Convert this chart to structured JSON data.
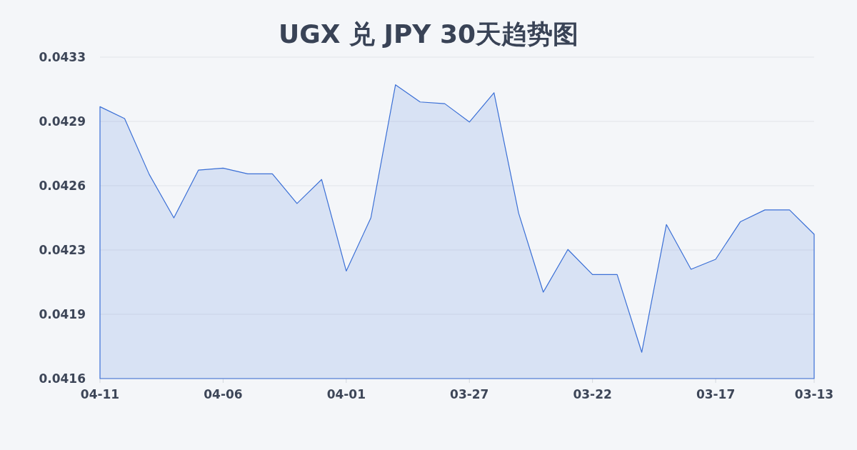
{
  "chart_data": {
    "type": "area",
    "title": "UGX 兑 JPY 30天趋势图",
    "categories": [
      "04-11",
      null,
      null,
      null,
      null,
      "04-06",
      null,
      null,
      null,
      null,
      "04-01",
      null,
      null,
      null,
      null,
      "03-27",
      null,
      null,
      null,
      null,
      "03-22",
      null,
      null,
      null,
      null,
      "03-17",
      null,
      null,
      null,
      "03-13"
    ],
    "series": [
      {
        "color": "#3a6fd6",
        "values": [
          0.043018,
          0.042955,
          0.04266,
          0.04243,
          0.042683,
          0.042693,
          0.042663,
          0.042663,
          0.042506,
          0.042633,
          0.042149,
          0.04243,
          0.043134,
          0.043043,
          0.043034,
          0.042937,
          0.043092,
          0.042455,
          0.042037,
          0.042263,
          0.04213,
          0.04213,
          0.041719,
          0.042395,
          0.042158,
          0.042211,
          0.042409,
          0.042472,
          0.042472,
          0.042343
        ]
      }
    ],
    "ylim": [
      0.04158,
      0.04328
    ],
    "yticks": [
      {
        "value": 0.04158,
        "label": "0.0416"
      },
      {
        "value": 0.04192,
        "label": "0.0419"
      },
      {
        "value": 0.04226,
        "label": "0.0423"
      },
      {
        "value": 0.0426,
        "label": "0.0426"
      },
      {
        "value": 0.04294,
        "label": "0.0429"
      },
      {
        "value": 0.04328,
        "label": "0.0433"
      }
    ],
    "grid": "y"
  }
}
